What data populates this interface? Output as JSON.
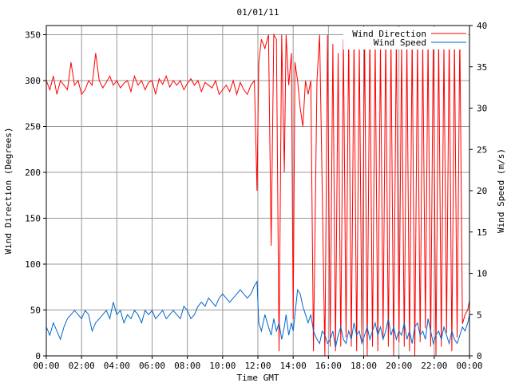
{
  "chart_data": {
    "type": "line",
    "title": "01/01/11",
    "xlabel": "Time GMT",
    "ylabel": "Wind Direction (Degrees)",
    "y2label": "Wind Speed (m/s)",
    "grid": true,
    "legend_position": "top-right",
    "x_unit": "hours since 00:00 GMT",
    "xlim": [
      0,
      24
    ],
    "ylim": [
      0,
      360
    ],
    "y2lim": [
      0,
      40
    ],
    "x_ticks": [
      0,
      2,
      4,
      6,
      8,
      10,
      12,
      14,
      16,
      18,
      20,
      22,
      24
    ],
    "x_tick_labels": [
      "00:00",
      "02:00",
      "04:00",
      "06:00",
      "08:00",
      "10:00",
      "12:00",
      "14:00",
      "16:00",
      "18:00",
      "20:00",
      "22:00",
      "00:00"
    ],
    "y_ticks": [
      0,
      50,
      100,
      150,
      200,
      250,
      300,
      350
    ],
    "y_tick_labels": [
      "0",
      "50",
      "100",
      "150",
      "200",
      "250",
      "300",
      "350"
    ],
    "y2_ticks": [
      0,
      5,
      10,
      15,
      20,
      25,
      30,
      35,
      40
    ],
    "y2_tick_labels": [
      "0",
      "5",
      "10",
      "15",
      "20",
      "25",
      "30",
      "35",
      "40"
    ],
    "series": [
      {
        "name": "Wind Direction",
        "axis": "left",
        "color": "#ff0000",
        "x": [
          0,
          0.2,
          0.4,
          0.6,
          0.8,
          1.0,
          1.2,
          1.4,
          1.6,
          1.8,
          2.0,
          2.2,
          2.4,
          2.6,
          2.8,
          3.0,
          3.2,
          3.4,
          3.6,
          3.8,
          4.0,
          4.2,
          4.4,
          4.6,
          4.8,
          5.0,
          5.2,
          5.4,
          5.6,
          5.8,
          6.0,
          6.2,
          6.4,
          6.6,
          6.8,
          7.0,
          7.2,
          7.4,
          7.6,
          7.8,
          8.0,
          8.2,
          8.4,
          8.6,
          8.8,
          9.0,
          9.2,
          9.4,
          9.6,
          9.8,
          10.0,
          10.2,
          10.4,
          10.6,
          10.8,
          11.0,
          11.2,
          11.4,
          11.6,
          11.8,
          11.95,
          12.05,
          12.2,
          12.4,
          12.6,
          12.75,
          12.9,
          13.05,
          13.2,
          13.35,
          13.5,
          13.6,
          13.75,
          13.9,
          14.0,
          14.1,
          14.25,
          14.4,
          14.55,
          14.7,
          14.85,
          15.0,
          15.15,
          15.35,
          15.5,
          15.65,
          15.8,
          15.95,
          16.1,
          16.25,
          16.4,
          16.55,
          16.7,
          16.85,
          17.0,
          17.15,
          17.3,
          17.45,
          17.6,
          17.75,
          17.9,
          18.05,
          18.2,
          18.35,
          18.5,
          18.65,
          18.8,
          18.95,
          19.1,
          19.25,
          19.4,
          19.55,
          19.7,
          19.85,
          20.0,
          20.15,
          20.3,
          20.45,
          20.6,
          20.75,
          20.9,
          21.05,
          21.2,
          21.35,
          21.5,
          21.65,
          21.8,
          21.95,
          22.1,
          22.25,
          22.4,
          22.55,
          22.7,
          22.85,
          23.0,
          23.15,
          23.3,
          23.45,
          23.6,
          23.75,
          23.9,
          24.0
        ],
        "values": [
          300,
          290,
          305,
          285,
          300,
          295,
          290,
          320,
          295,
          300,
          285,
          290,
          300,
          295,
          330,
          300,
          292,
          298,
          305,
          295,
          300,
          292,
          297,
          300,
          288,
          305,
          295,
          300,
          290,
          298,
          300,
          285,
          302,
          296,
          305,
          293,
          300,
          295,
          300,
          290,
          297,
          302,
          295,
          300,
          288,
          298,
          295,
          292,
          300,
          285,
          290,
          295,
          288,
          300,
          285,
          298,
          290,
          285,
          295,
          300,
          180,
          320,
          345,
          335,
          350,
          120,
          350,
          345,
          5,
          350,
          200,
          350,
          295,
          330,
          40,
          320,
          300,
          270,
          250,
          300,
          285,
          300,
          5,
          300,
          350,
          180,
          0,
          350,
          10,
          340,
          5,
          330,
          10,
          345,
          20,
          350,
          10,
          350,
          5,
          340,
          15,
          350,
          0,
          355,
          10,
          345,
          5,
          340,
          20,
          350,
          10,
          345,
          0,
          350,
          15,
          340,
          10,
          345,
          5,
          350,
          0,
          345,
          15,
          340,
          30,
          345,
          10,
          350,
          0,
          345,
          10,
          340,
          25,
          350,
          5,
          345,
          20,
          350,
          35,
          45,
          50,
          60
        ]
      },
      {
        "name": "Wind Speed",
        "axis": "right",
        "color": "#0066cc",
        "x": [
          0,
          0.2,
          0.4,
          0.6,
          0.8,
          1.0,
          1.2,
          1.4,
          1.6,
          1.8,
          2.0,
          2.2,
          2.4,
          2.6,
          2.8,
          3.0,
          3.2,
          3.4,
          3.6,
          3.8,
          4.0,
          4.2,
          4.4,
          4.6,
          4.8,
          5.0,
          5.2,
          5.4,
          5.6,
          5.8,
          6.0,
          6.2,
          6.4,
          6.6,
          6.8,
          7.0,
          7.2,
          7.4,
          7.6,
          7.8,
          8.0,
          8.2,
          8.4,
          8.6,
          8.8,
          9.0,
          9.2,
          9.4,
          9.6,
          9.8,
          10.0,
          10.2,
          10.4,
          10.6,
          10.8,
          11.0,
          11.2,
          11.4,
          11.6,
          11.8,
          11.95,
          12.05,
          12.2,
          12.4,
          12.6,
          12.75,
          12.9,
          13.05,
          13.2,
          13.35,
          13.5,
          13.6,
          13.75,
          13.9,
          14.0,
          14.1,
          14.25,
          14.4,
          14.55,
          14.7,
          14.85,
          15.0,
          15.15,
          15.35,
          15.5,
          15.65,
          15.8,
          15.95,
          16.1,
          16.25,
          16.4,
          16.55,
          16.7,
          16.85,
          17.0,
          17.15,
          17.3,
          17.45,
          17.6,
          17.75,
          17.9,
          18.05,
          18.2,
          18.35,
          18.5,
          18.65,
          18.8,
          18.95,
          19.1,
          19.25,
          19.4,
          19.55,
          19.7,
          19.85,
          20.0,
          20.15,
          20.3,
          20.45,
          20.6,
          20.75,
          20.9,
          21.05,
          21.2,
          21.35,
          21.5,
          21.65,
          21.8,
          21.95,
          22.1,
          22.25,
          22.4,
          22.55,
          22.7,
          22.85,
          23.0,
          23.15,
          23.3,
          23.45,
          23.6,
          23.75,
          23.9,
          24.0
        ],
        "values": [
          3.5,
          2.5,
          4.0,
          3.0,
          2.0,
          3.5,
          4.5,
          5.0,
          5.5,
          5.0,
          4.5,
          5.5,
          5.0,
          3.0,
          4.0,
          4.5,
          5.0,
          5.5,
          4.5,
          6.5,
          5.0,
          5.5,
          4.0,
          5.0,
          4.5,
          5.5,
          5.0,
          4.0,
          5.5,
          5.0,
          5.5,
          4.5,
          5.0,
          5.5,
          4.5,
          5.0,
          5.5,
          5.0,
          4.5,
          6.0,
          5.5,
          4.5,
          5.0,
          6.0,
          6.5,
          6.0,
          7.0,
          6.5,
          6.0,
          7.0,
          7.5,
          7.0,
          6.5,
          7.0,
          7.5,
          8.0,
          7.5,
          7.0,
          7.5,
          8.5,
          9.0,
          4.0,
          3.0,
          5.0,
          3.5,
          2.5,
          4.5,
          3.0,
          4.0,
          2.0,
          3.5,
          5.0,
          2.5,
          4.0,
          3.0,
          5.0,
          8.0,
          7.5,
          6.0,
          5.0,
          4.0,
          5.0,
          3.0,
          2.0,
          1.5,
          3.0,
          2.5,
          1.5,
          2.0,
          3.0,
          1.0,
          2.5,
          3.5,
          2.0,
          1.5,
          3.0,
          2.0,
          4.0,
          2.5,
          3.0,
          1.5,
          2.5,
          3.5,
          2.0,
          3.0,
          4.0,
          2.5,
          3.5,
          2.0,
          3.0,
          4.5,
          2.5,
          3.5,
          2.0,
          3.0,
          2.5,
          4.0,
          2.0,
          3.0,
          1.5,
          3.5,
          4.0,
          2.5,
          3.0,
          2.0,
          4.5,
          3.0,
          1.5,
          2.5,
          3.0,
          2.0,
          3.5,
          2.5,
          1.5,
          3.0,
          2.0,
          1.5,
          2.5,
          3.5,
          3.0,
          4.0,
          5.0
        ]
      }
    ]
  }
}
